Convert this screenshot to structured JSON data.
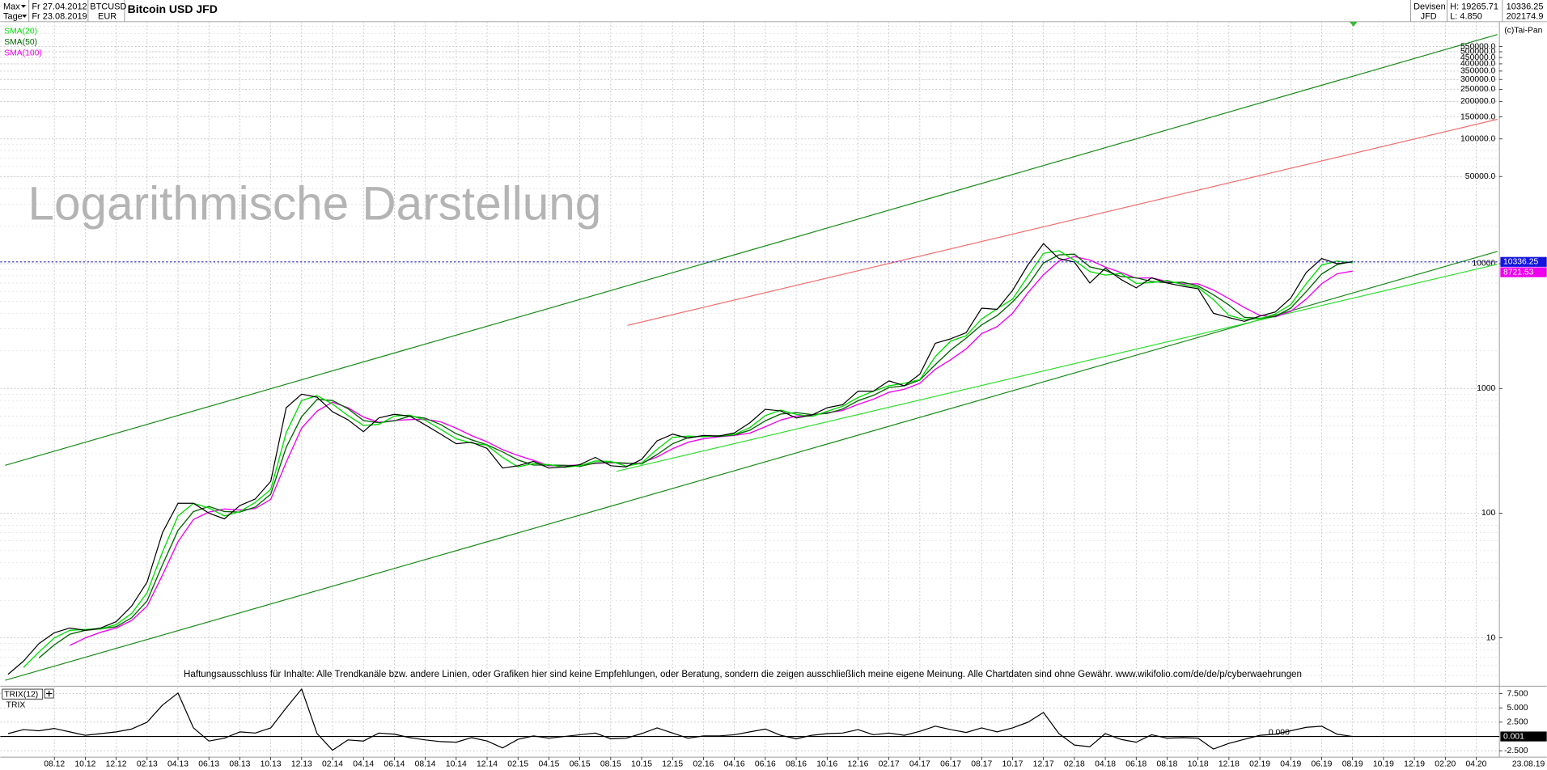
{
  "header": {
    "range": "Max",
    "period": "Tage",
    "from": "Fr 27.04.2012",
    "to": "Fr 23.08.2019",
    "currency": "EUR",
    "market": "Devisen",
    "source": "JFD",
    "high": "H: 19265.71",
    "low": "L: 4.850",
    "value": "202174.9",
    "copyright": "(c)Tai-Pan"
  },
  "chart_data": [
    {
      "type": "line",
      "title": "Bitcoin USD JFD",
      "watermark": "Logarithmische Darstellung",
      "disclaimer": "Haftungsausschluss für Inhalte: Alle Trendkanäle bzw. andere Linien, oder Grafiken hier sind keine Empfehlungen, oder Beratung, sondern die zeigen ausschließlich meine eigene Meinung. Alle Chartdaten sind ohne Gewähr.  www.wikifolio.com/de/de/p/cyberwaehrungen",
      "date_label": "23.08.19",
      "log_scale": true,
      "grid": true,
      "legend": "top-left",
      "ylim": [
        4.41,
        871000
      ],
      "yticks": [
        10,
        100,
        1000,
        10000,
        {
          "value": 50000,
          "label": "50000.0"
        },
        {
          "value": 100000,
          "label": "100000.0"
        },
        {
          "value": 150000,
          "label": "150000.0"
        },
        {
          "value": 200000,
          "label": "200000.0"
        },
        {
          "value": 250000,
          "label": "250000.0"
        },
        {
          "value": 300000,
          "label": "300000.0"
        },
        {
          "value": 350000,
          "label": "350000.0"
        },
        {
          "value": 400000,
          "label": "400000.0"
        },
        {
          "value": 450000,
          "label": "450000.0"
        },
        {
          "value": 500000,
          "label": "500000.0"
        },
        {
          "value": 550000,
          "label": "550000.0"
        }
      ],
      "categories": [
        null,
        null,
        null,
        "08.12",
        null,
        "10.12",
        null,
        "12.12",
        null,
        "02.13",
        null,
        "04.13",
        null,
        "06.13",
        null,
        "08.13",
        null,
        "10.13",
        null,
        "12.13",
        null,
        "02.14",
        null,
        "04.14",
        null,
        "06.14",
        null,
        "08.14",
        null,
        "10.14",
        null,
        "12.14",
        null,
        "02.15",
        null,
        "04.15",
        null,
        "06.15",
        null,
        "08.15",
        null,
        "10.15",
        null,
        "12.15",
        null,
        "02.16",
        null,
        "04.16",
        null,
        "06.16",
        null,
        "08.16",
        null,
        "10.16",
        null,
        "12.16",
        null,
        "02.17",
        null,
        "04.17",
        null,
        "06.17",
        null,
        "08.17",
        null,
        "10.17",
        null,
        "12.17",
        null,
        "02.18",
        null,
        "04.18",
        null,
        "06.18",
        null,
        "08.18",
        null,
        "10.18",
        null,
        "12.18",
        null,
        "02.19",
        null,
        "04.19",
        null,
        "06.19",
        null,
        "08.19",
        null,
        "10.19",
        null,
        "12.19",
        null,
        "02.20",
        null,
        "04.20",
        null
      ],
      "series": [
        {
          "name": "BTCUSD",
          "color": "#000000",
          "values": [
            5.1,
            6.5,
            9,
            11,
            12,
            11.5,
            12,
            13.5,
            18,
            28,
            70,
            120,
            120,
            100,
            90,
            115,
            130,
            180,
            700,
            900,
            850,
            650,
            560,
            450,
            580,
            620,
            600,
            510,
            430,
            360,
            370,
            330,
            230,
            240,
            260,
            230,
            235,
            245,
            280,
            240,
            235,
            270,
            380,
            430,
            400,
            420,
            415,
            440,
            530,
            680,
            660,
            580,
            610,
            700,
            740,
            950,
            950,
            1150,
            1050,
            1300,
            2300,
            2500,
            2800,
            4400,
            4300,
            6100,
            9800,
            14500,
            11000,
            10300,
            7000,
            9200,
            7500,
            6400,
            7700,
            7000,
            6600,
            6300,
            4000,
            3700,
            3450,
            3800,
            4100,
            5300,
            8500,
            11000,
            10000,
            10336.25,
            null,
            null,
            null,
            null,
            null,
            null,
            null,
            null,
            null
          ]
        },
        {
          "name": "SMA(20)",
          "color": "#00dd00",
          "values": [
            null,
            5.8,
            7.7,
            10,
            11.5,
            11.7,
            11.8,
            12.8,
            15.7,
            23,
            49,
            95,
            120,
            110,
            95,
            103,
            122,
            155,
            440,
            800,
            875,
            750,
            605,
            505,
            515,
            600,
            610,
            555,
            470,
            395,
            365,
            350,
            280,
            235,
            250,
            245,
            233,
            240,
            262,
            260,
            238,
            252,
            325,
            405,
            415,
            410,
            418,
            428,
            485,
            605,
            670,
            620,
            595,
            655,
            720,
            845,
            950,
            1050,
            1100,
            1175,
            1800,
            2400,
            2650,
            3600,
            4350,
            5200,
            7950,
            12100,
            12700,
            10650,
            8650,
            8100,
            8350,
            6950,
            7050,
            7350,
            6800,
            6450,
            5150,
            3850,
            3575,
            3625,
            3950,
            4700,
            6900,
            9750,
            10500,
            10170,
            null,
            null,
            null,
            null,
            null,
            null,
            null,
            null,
            null
          ]
        },
        {
          "name": "SMA(50)",
          "color": "#006400",
          "values": [
            null,
            null,
            6.9,
            8.8,
            10.7,
            11.5,
            11.8,
            12.3,
            14.5,
            19.8,
            38.7,
            72.7,
            103,
            113,
            103,
            102,
            112,
            142,
            337,
            593,
            817,
            800,
            687,
            553,
            530,
            550,
            600,
            577,
            513,
            433,
            387,
            353,
            310,
            267,
            243,
            243,
            242,
            237,
            253,
            255,
            252,
            248,
            295,
            360,
            403,
            417,
            412,
            425,
            462,
            550,
            623,
            640,
            617,
            630,
            683,
            797,
            880,
            1017,
            1050,
            1167,
            1550,
            2033,
            2533,
            3233,
            3833,
            4933,
            6733,
            10133,
            11767,
            11933,
            9433,
            8833,
            7900,
            7700,
            7200,
            7033,
            7100,
            6633,
            5633,
            4667,
            3717,
            3650,
            3783,
            4400,
            5967,
            8267,
            9833,
            10445,
            null,
            null,
            null,
            null,
            null,
            null,
            null,
            null,
            null
          ]
        },
        {
          "name": "SMA(100)",
          "color": "#ee00ee",
          "values": [
            null,
            null,
            null,
            null,
            8.7,
            10,
            11.1,
            12,
            13.8,
            18,
            32,
            59,
            89,
            102,
            108,
            106,
            109,
            129,
            256,
            481,
            658,
            776,
            700,
            589,
            535,
            553,
            563,
            565,
            540,
            480,
            418,
            373,
            323,
            290,
            265,
            240,
            241,
            243,
            250,
            254,
            250,
            253,
            282,
            329,
            370,
            395,
            410,
            420,
            438,
            493,
            558,
            600,
            612,
            638,
            665,
            745,
            820,
            930,
            985,
            1100,
            1425,
            1700,
            2075,
            2750,
            3125,
            4000,
            5850,
            8150,
            10500,
            11400,
            10700,
            9400,
            8500,
            7650,
            7700,
            7200,
            6900,
            6900,
            6150,
            5250,
            4450,
            3850,
            3750,
            4150,
            5200,
            6900,
            8300,
            8721.53,
            null,
            null,
            null,
            null,
            null,
            null,
            null,
            null,
            null
          ]
        }
      ]
    },
    {
      "type": "line",
      "ylabel": "TRIX",
      "annotation": "0.000",
      "grid": true,
      "ylim": [
        -3.62,
        8.62
      ],
      "yticks": [
        {
          "value": 7.5,
          "label": "7.500"
        },
        {
          "value": 5,
          "label": "5.000"
        },
        {
          "value": 2.5,
          "label": "2.500"
        },
        {
          "value": -2.5,
          "label": "-2.500"
        }
      ],
      "series": [
        {
          "name": "TRIX(12)",
          "color": "#000000",
          "values": [
            0.5,
            1.2,
            1.0,
            1.4,
            0.8,
            0.2,
            0.5,
            0.8,
            1.3,
            2.5,
            5.5,
            7.6,
            1.5,
            -0.8,
            -0.3,
            0.8,
            0.6,
            1.5,
            5.0,
            8.3,
            0.5,
            -2.4,
            -0.6,
            -0.8,
            0.6,
            0.4,
            -0.2,
            -0.6,
            -0.9,
            -1.0,
            -0.2,
            -0.8,
            -2.0,
            -0.5,
            0.1,
            -0.3,
            0,
            0.3,
            0.6,
            -0.4,
            -0.3,
            0.5,
            1.5,
            0.6,
            -0.3,
            0.1,
            0.1,
            0.3,
            0.8,
            1.3,
            0.2,
            -0.4,
            0.2,
            0.5,
            0.6,
            1.2,
            0.3,
            0.6,
            0.2,
            0.9,
            1.8,
            1.2,
            0.7,
            1.5,
            0.8,
            1.5,
            2.5,
            4.2,
            0.5,
            -1.5,
            -1.8,
            0.5,
            -0.5,
            -1.0,
            0.3,
            -0.3,
            -0.2,
            -0.3,
            -2.2,
            -1.2,
            -0.5,
            0.2,
            0.4,
            1.0,
            1.6,
            1.8,
            0.4,
            0.001,
            null,
            null,
            null,
            null,
            null,
            null,
            null,
            null,
            null
          ]
        }
      ]
    }
  ]
}
